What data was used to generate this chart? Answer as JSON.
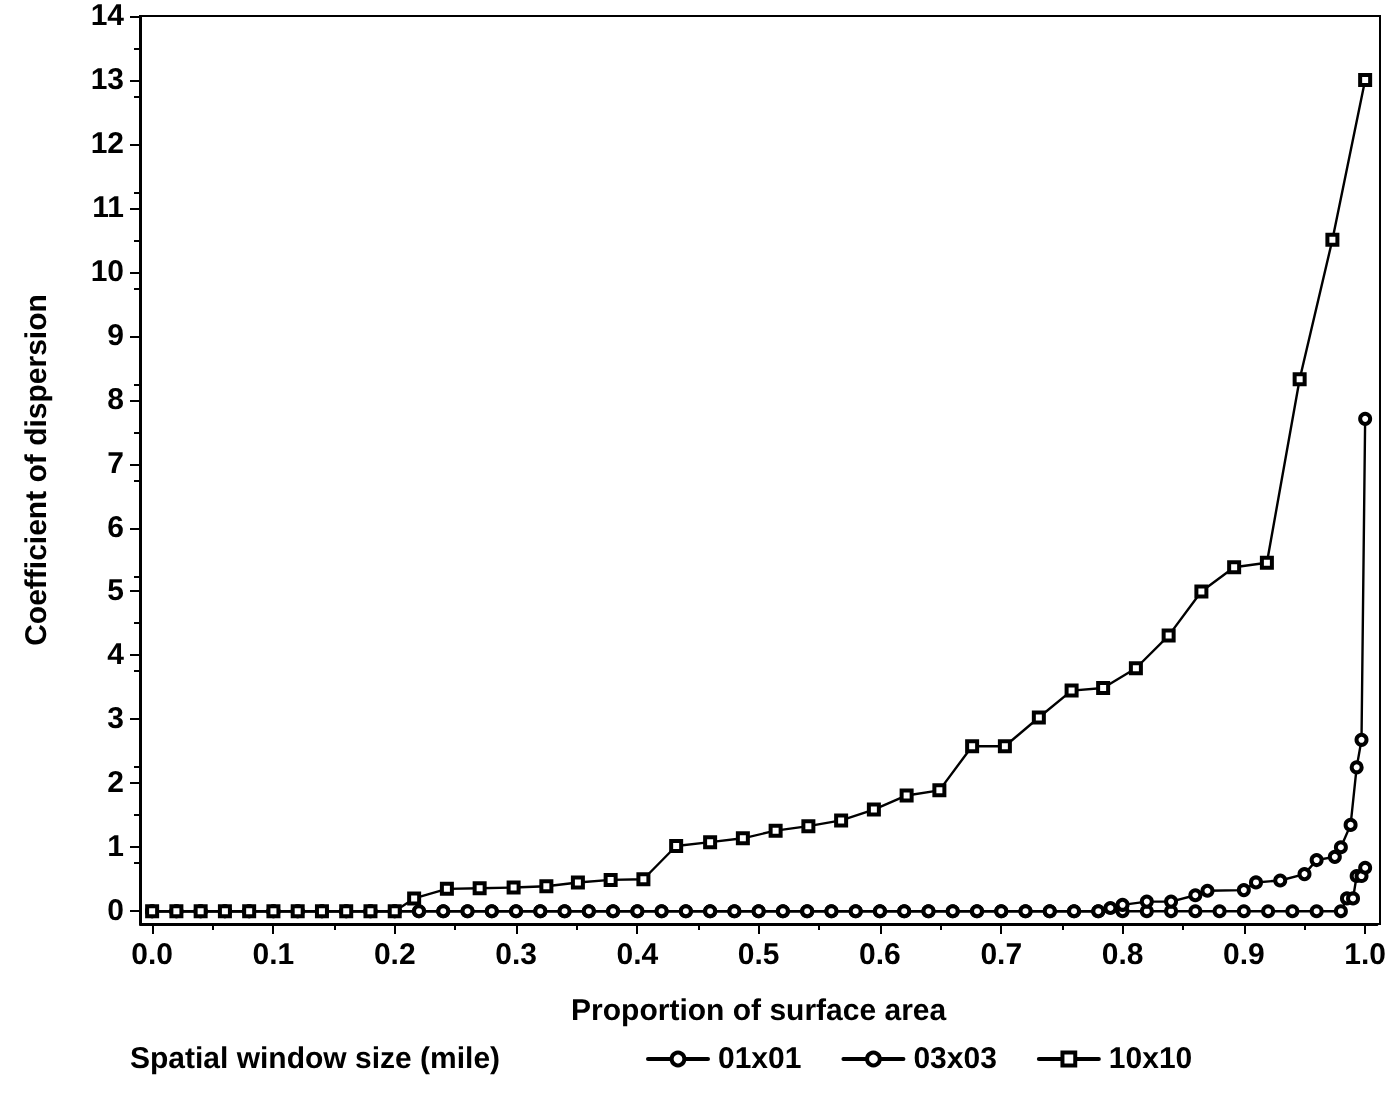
{
  "chart_data": {
    "type": "line",
    "xlabel": "Proportion of surface area",
    "ylabel": "Coefficient of dispersion",
    "legend_title": "Spatial window size (mile)",
    "xlim": [
      -0.01,
      1.01
    ],
    "xticks": [
      {
        "value": 0,
        "label": "0.0"
      },
      0.1,
      0.2,
      0.3,
      0.4,
      0.5,
      0.6,
      0.7,
      0.8,
      0.9,
      {
        "value": 1,
        "label": "1.0"
      }
    ],
    "ylim": [
      -0.2,
      14
    ],
    "yticks": [
      0,
      1,
      2,
      3,
      4,
      5,
      6,
      7,
      8,
      9,
      10,
      11,
      12,
      13,
      14
    ],
    "grid": false,
    "legend": "bottom",
    "line_style": "solid",
    "series": [
      {
        "name": "01x01",
        "color": "#000000",
        "marker": "circle",
        "x": [
          0,
          0.02,
          0.04,
          0.06,
          0.08,
          0.1,
          0.12,
          0.14,
          0.16,
          0.18,
          0.2,
          0.22,
          0.24,
          0.26,
          0.28,
          0.3,
          0.32,
          0.34,
          0.36,
          0.38,
          0.4,
          0.42,
          0.44,
          0.46,
          0.48,
          0.5,
          0.52,
          0.54,
          0.56,
          0.58,
          0.6,
          0.62,
          0.64,
          0.66,
          0.68,
          0.7,
          0.72,
          0.74,
          0.76,
          0.78,
          0.8,
          0.82,
          0.84,
          0.86,
          0.88,
          0.9,
          0.92,
          0.94,
          0.96,
          0.98,
          0.985,
          0.99,
          0.993,
          0.997,
          1.0
        ],
        "values": [
          0,
          0,
          0,
          0,
          0,
          0,
          0,
          0,
          0,
          0,
          0,
          0,
          0,
          0,
          0,
          0,
          0,
          0,
          0,
          0,
          0,
          0,
          0,
          0,
          0,
          0,
          0,
          0,
          0,
          0,
          0,
          0,
          0,
          0,
          0,
          0,
          0,
          0,
          0,
          0,
          0,
          0,
          0,
          0,
          0,
          0,
          0,
          0,
          0,
          0,
          0.2,
          0.2,
          0.55,
          0.55,
          0.68
        ]
      },
      {
        "name": "03x03",
        "color": "#000000",
        "marker": "circle",
        "x": [
          0,
          0.02,
          0.04,
          0.06,
          0.08,
          0.1,
          0.12,
          0.14,
          0.16,
          0.18,
          0.2,
          0.22,
          0.24,
          0.26,
          0.28,
          0.3,
          0.32,
          0.34,
          0.36,
          0.38,
          0.4,
          0.42,
          0.44,
          0.46,
          0.48,
          0.5,
          0.52,
          0.54,
          0.56,
          0.58,
          0.6,
          0.62,
          0.64,
          0.66,
          0.68,
          0.7,
          0.72,
          0.74,
          0.76,
          0.78,
          0.79,
          0.8,
          0.82,
          0.84,
          0.86,
          0.87,
          0.9,
          0.91,
          0.93,
          0.95,
          0.96,
          0.975,
          0.98,
          0.988,
          0.993,
          0.997,
          1.0
        ],
        "values": [
          0,
          0,
          0,
          0,
          0,
          0,
          0,
          0,
          0,
          0,
          0,
          0,
          0,
          0,
          0,
          0,
          0,
          0,
          0,
          0,
          0,
          0,
          0,
          0,
          0,
          0,
          0,
          0,
          0,
          0,
          0,
          0,
          0,
          0,
          0,
          0,
          0,
          0,
          0,
          0,
          0.05,
          0.1,
          0.15,
          0.15,
          0.25,
          0.32,
          0.33,
          0.45,
          0.48,
          0.58,
          0.8,
          0.85,
          1.0,
          1.35,
          2.25,
          2.68,
          7.7
        ]
      },
      {
        "name": "10x10",
        "color": "#000000",
        "marker": "square",
        "x": [
          0,
          0.02,
          0.04,
          0.06,
          0.08,
          0.1,
          0.12,
          0.14,
          0.16,
          0.18,
          0.2,
          0.216,
          0.243,
          0.27,
          0.298,
          0.325,
          0.351,
          0.378,
          0.405,
          0.432,
          0.46,
          0.487,
          0.514,
          0.541,
          0.568,
          0.595,
          0.622,
          0.649,
          0.676,
          0.703,
          0.731,
          0.758,
          0.784,
          0.811,
          0.838,
          0.865,
          0.892,
          0.919,
          0.946,
          0.973,
          1.0
        ],
        "values": [
          0,
          0,
          0,
          0,
          0,
          0,
          0,
          0,
          0,
          0,
          0,
          0.2,
          0.35,
          0.36,
          0.37,
          0.39,
          0.45,
          0.49,
          0.5,
          1.02,
          1.08,
          1.14,
          1.26,
          1.33,
          1.42,
          1.59,
          1.81,
          1.89,
          2.58,
          2.58,
          3.03,
          3.45,
          3.49,
          3.8,
          4.31,
          5.0,
          5.38,
          5.45,
          8.32,
          10.5,
          13.0
        ]
      }
    ]
  }
}
